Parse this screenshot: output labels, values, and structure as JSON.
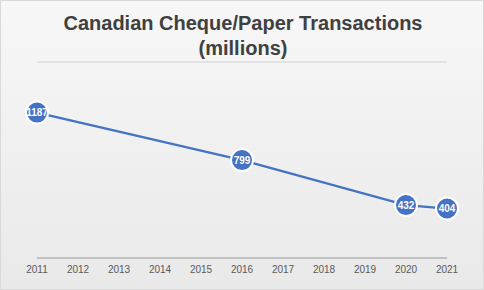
{
  "chart_data": {
    "type": "line",
    "title": "Canadian Cheque/Paper Transactions\n(millions)",
    "x": [
      2011,
      2016,
      2020,
      2021
    ],
    "values": [
      1187,
      799,
      432,
      404
    ],
    "color": "#4472c4",
    "marker": "circle",
    "data_labels": true,
    "xlim": [
      2011,
      2021
    ],
    "xticks": [
      2011,
      2012,
      2013,
      2014,
      2015,
      2016,
      2017,
      2018,
      2019,
      2020,
      2021
    ],
    "ylim": [
      0,
      1600
    ],
    "yticks": [
      0,
      200,
      400,
      600,
      800,
      1000,
      1200,
      1400,
      1600
    ],
    "grid": true,
    "tick_labels": "x"
  }
}
